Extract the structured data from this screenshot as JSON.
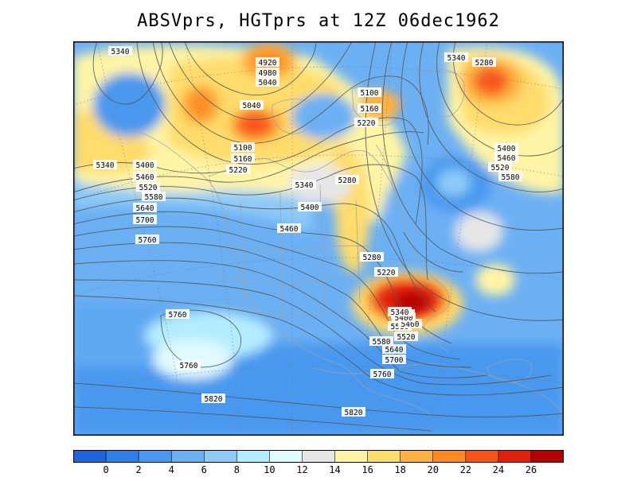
{
  "title": "ABSVprs, HGTprs at 12Z  06dec1962",
  "colorbar": {
    "colors": [
      "#1e64dc",
      "#2d80e8",
      "#4a98ef",
      "#6cb0f4",
      "#8ecaf8",
      "#b4ecff",
      "#e0faff",
      "#e6e6e6",
      "#fff4a6",
      "#ffdc6c",
      "#ffb140",
      "#ff8a22",
      "#f8541a",
      "#e0200a",
      "#b40000"
    ],
    "ticks": [
      "0",
      "2",
      "4",
      "6",
      "8",
      "10",
      "12",
      "14",
      "16",
      "18",
      "20",
      "22",
      "24",
      "26"
    ]
  },
  "contour_labels": [
    "5340",
    "4920",
    "4980",
    "5040",
    "5040",
    "5280",
    "5100",
    "5160",
    "5220",
    "5100",
    "5160",
    "5220",
    "5340",
    "5340",
    "5400",
    "5460",
    "5520",
    "5580",
    "5640",
    "5400",
    "5460",
    "5520",
    "5580",
    "5700",
    "5340",
    "5280",
    "5400",
    "5460",
    "5760",
    "5280",
    "5220",
    "5760",
    "5760",
    "5580",
    "5640",
    "5700",
    "5760",
    "5820",
    "5820",
    "5640",
    "5580",
    "5520",
    "5460",
    "5400",
    "5340"
  ],
  "vorticity_features": [
    {
      "kind": "max",
      "color": "#e0200a"
    },
    {
      "kind": "max",
      "color": "#ff8a22"
    },
    {
      "kind": "max",
      "color": "#ff8a22"
    },
    {
      "kind": "max",
      "color": "#f8541a"
    },
    {
      "kind": "max",
      "color": "#ffb140"
    },
    {
      "kind": "max",
      "color": "#b40000"
    },
    {
      "kind": "min",
      "color": "#4a98ef"
    },
    {
      "kind": "min",
      "color": "#6cb0f4"
    },
    {
      "kind": "min",
      "color": "#8ecaf8"
    }
  ]
}
